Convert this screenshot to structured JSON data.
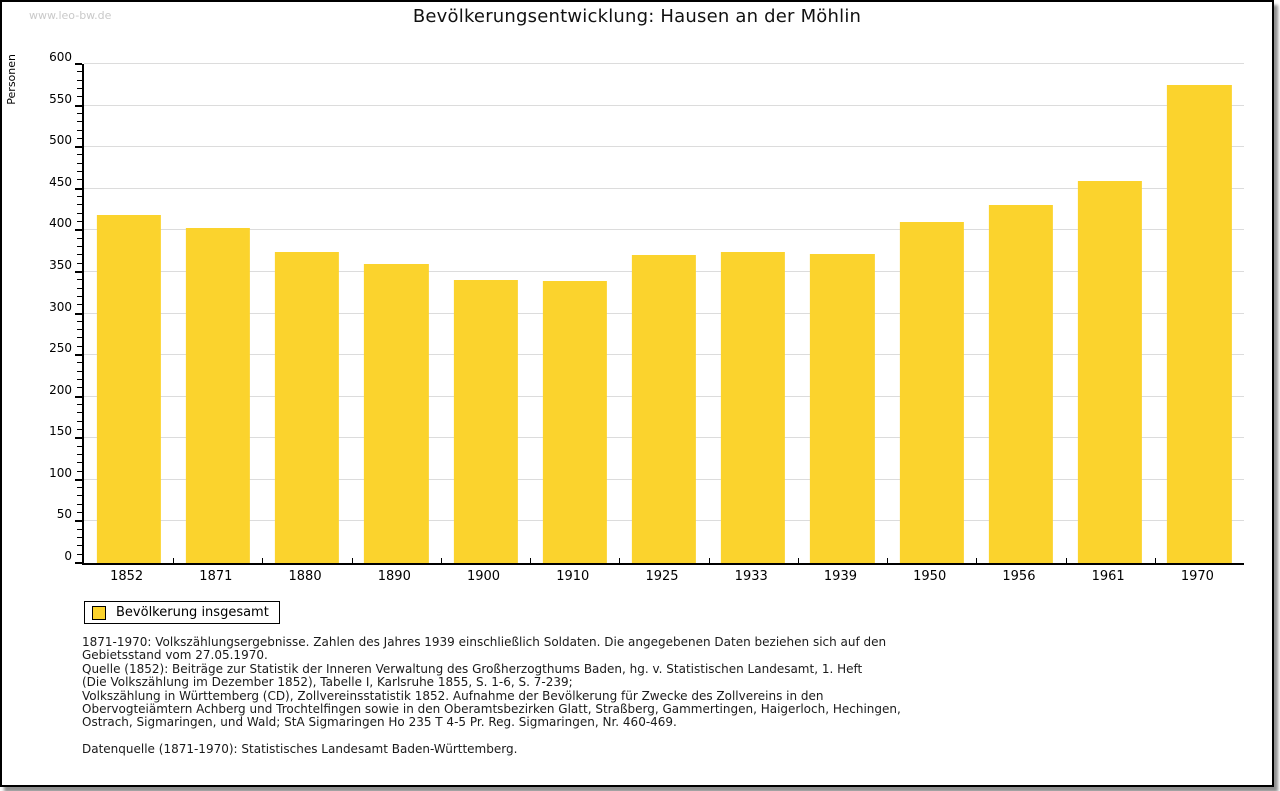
{
  "page": {
    "watermark": "www.leo-bw.de",
    "title": "Bevölkerungsentwicklung: Hausen an der Möhlin"
  },
  "chart_data": {
    "type": "bar",
    "title": "Bevölkerungsentwicklung: Hausen an der Möhlin",
    "xlabel": "",
    "ylabel": "Personen",
    "categories": [
      "1852",
      "1871",
      "1880",
      "1890",
      "1900",
      "1910",
      "1925",
      "1933",
      "1939",
      "1950",
      "1956",
      "1961",
      "1970"
    ],
    "values": [
      418,
      403,
      374,
      359,
      340,
      339,
      370,
      374,
      371,
      410,
      430,
      459,
      575
    ],
    "ylim": [
      0,
      600
    ],
    "y_major_step": 50,
    "y_minor_step": 10,
    "grid": "horizontal-major",
    "legend": {
      "label": "Bevölkerung insgesamt",
      "position": "bottom-left"
    },
    "bar_color": "#fbd32d"
  },
  "colors": {
    "bar": "#fbd32d",
    "gridline": "#dcdcdc",
    "axis": "#000000",
    "watermark": "#c9c9c9"
  },
  "footnotes": {
    "lines": [
      "1871-1970: Volkszählungsergebnisse. Zahlen des Jahres 1939 einschließlich Soldaten. Die angegebenen Daten beziehen sich auf den",
      "Gebietsstand vom 27.05.1970.",
      "Quelle (1852): Beiträge zur Statistik der Inneren Verwaltung des Großherzogthums Baden, hg. v. Statistischen Landesamt, 1. Heft",
      "(Die Volkszählung im Dezember 1852), Tabelle I, Karlsruhe 1855, S. 1-6, S. 7-239;",
      "Volkszählung in Württemberg (CD), Zollvereinsstatistik 1852. Aufnahme der Bevölkerung für Zwecke des Zollvereins in den",
      "Obervogteiämtern Achberg und Trochtelfingen sowie in den Oberamtsbezirken Glatt, Straßberg, Gammertingen, Haigerloch, Hechingen,",
      "Ostrach, Sigmaringen, und Wald; StA Sigmaringen Ho 235 T 4-5 Pr. Reg. Sigmaringen, Nr. 460-469.",
      "",
      "Datenquelle (1871-1970): Statistisches Landesamt Baden-Württemberg."
    ]
  }
}
